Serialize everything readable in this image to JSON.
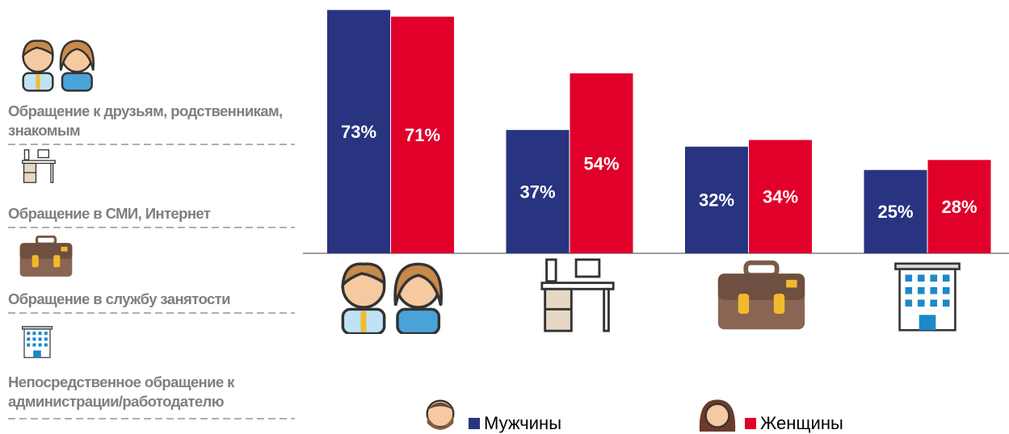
{
  "chart_data": {
    "type": "bar",
    "categories": [
      "Обращение к друзьям, родственникам, знакомым",
      "Обращение в СМИ, Интернет",
      "Обращение в службу занятости",
      "Непосредственное обращение к администрации/работодателю"
    ],
    "series": [
      {
        "name": "Мужчины",
        "color": "#283480",
        "values": [
          73,
          37,
          32,
          25
        ],
        "value_labels": [
          "73%",
          "37%",
          "32%",
          "25%"
        ]
      },
      {
        "name": "Женщины",
        "color": "#e0002a",
        "values": [
          71,
          54,
          34,
          28
        ],
        "value_labels": [
          "71%",
          "54%",
          "34%",
          "28%"
        ]
      }
    ],
    "ylim": [
      0,
      76
    ]
  }
}
